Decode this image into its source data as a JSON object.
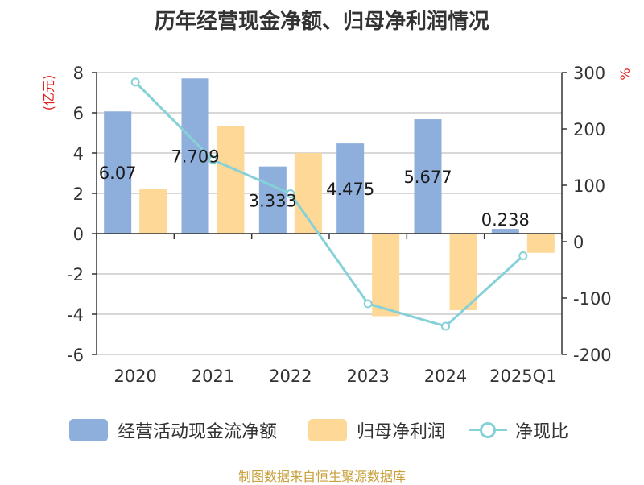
{
  "title": "历年经营现金净额、归母净利润情况",
  "source": "制图数据来自恒生聚源数据库",
  "left_unit": "(亿元)",
  "right_unit": "%",
  "colors": {
    "cash": "#8eaedb",
    "profit": "#fdd897",
    "ratio": "#86d1d8",
    "unit": "#e0201c",
    "axis": "#333333",
    "grid": "#cccccc"
  },
  "legend": {
    "cash": "经营活动现金流净额",
    "profit": "归母净利润",
    "ratio": "净现比"
  },
  "chart_data": {
    "type": "bar",
    "categories": [
      "2020",
      "2021",
      "2022",
      "2023",
      "2024",
      "2025Q1"
    ],
    "series": [
      {
        "name": "经营活动现金流净额",
        "axis": "left",
        "values": [
          6.07,
          7.709,
          3.333,
          4.475,
          5.677,
          0.238
        ],
        "labels": [
          "6.07",
          "7.709",
          "3.333",
          "4.475",
          "5.677",
          "0.238"
        ]
      },
      {
        "name": "归母净利润",
        "axis": "left",
        "values": [
          2.2,
          5.35,
          4.0,
          -4.1,
          -3.8,
          -0.95
        ]
      },
      {
        "name": "净现比",
        "axis": "right",
        "type": "line",
        "values": [
          283,
          145,
          85,
          -110,
          -150,
          -25
        ]
      }
    ],
    "y_left": {
      "ylim": [
        -6,
        8
      ],
      "ticks": [
        -6,
        -4,
        -2,
        0,
        2,
        4,
        6,
        8
      ]
    },
    "y_right": {
      "ylim": [
        -200,
        300
      ],
      "ticks": [
        -200,
        -100,
        0,
        100,
        200,
        300
      ]
    },
    "grid": true,
    "legend_position": "bottom"
  }
}
